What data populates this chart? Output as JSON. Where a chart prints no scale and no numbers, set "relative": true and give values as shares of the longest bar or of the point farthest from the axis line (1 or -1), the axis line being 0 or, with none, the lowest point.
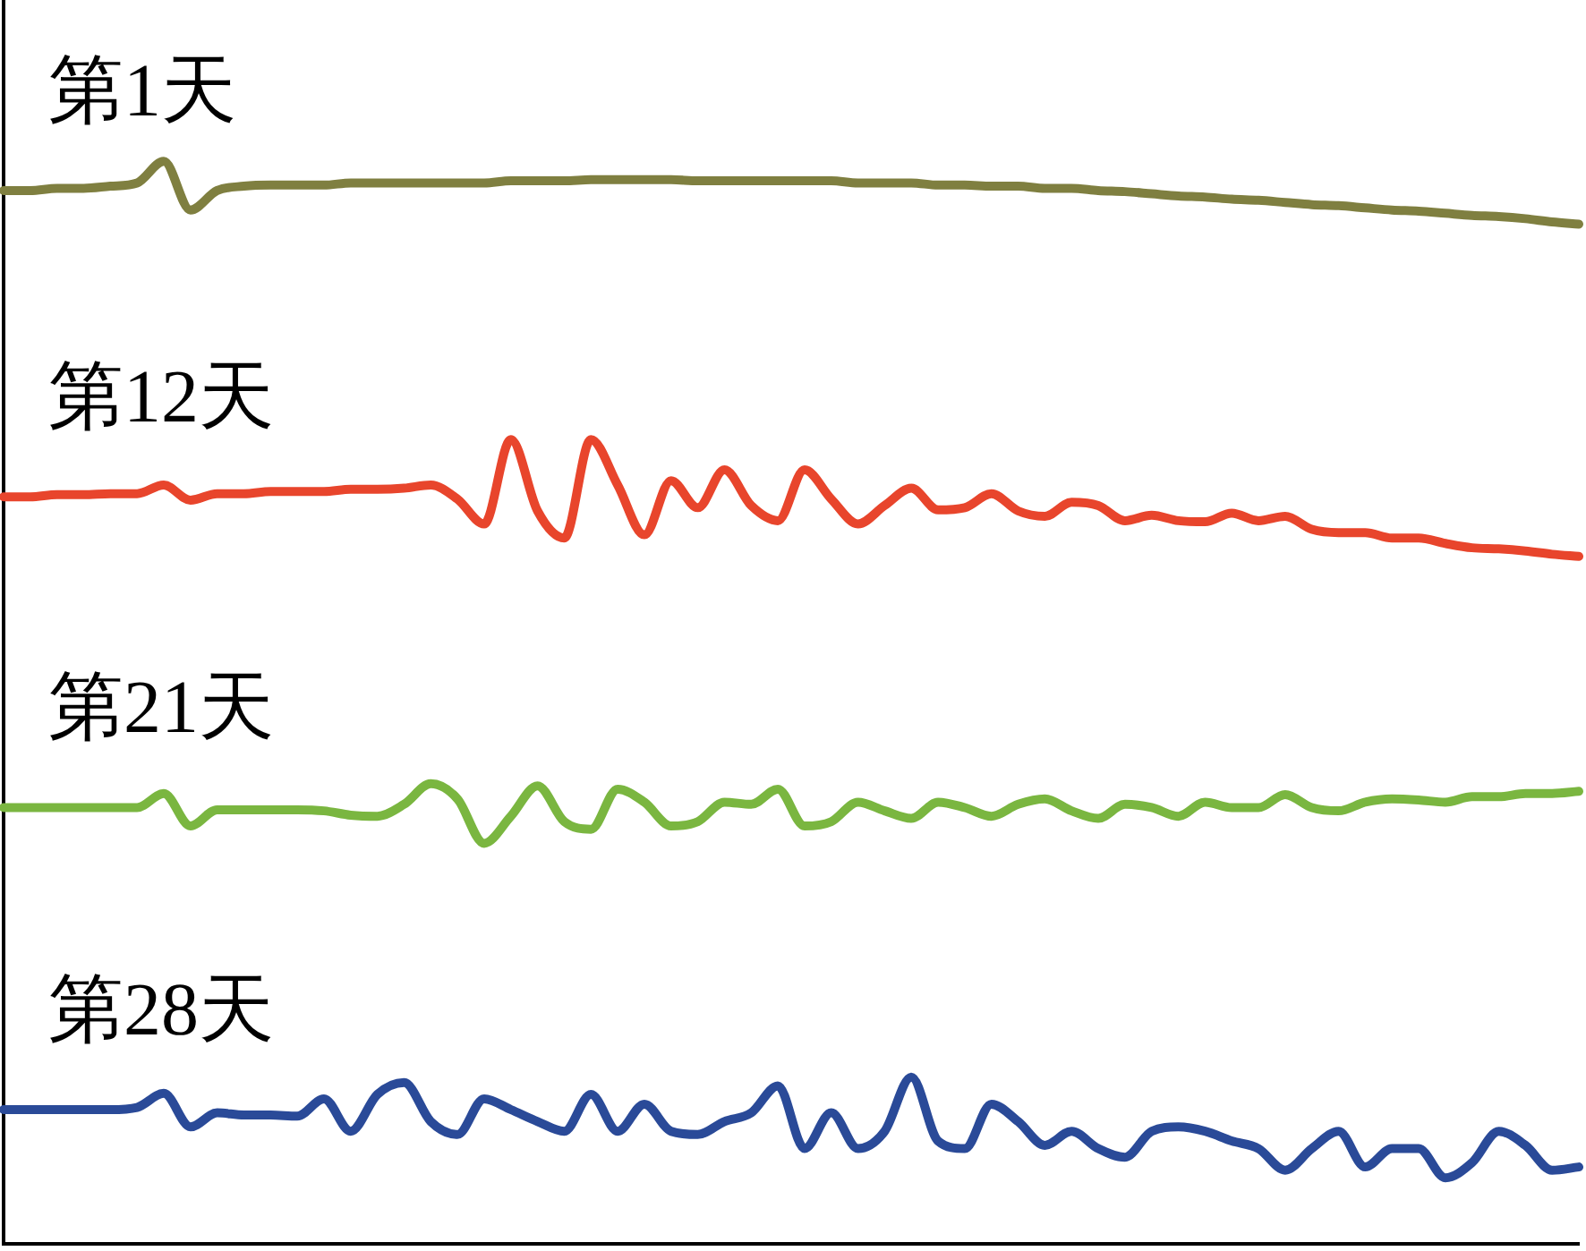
{
  "chart_data": {
    "type": "line",
    "relative": true,
    "legend": false,
    "grid": false,
    "marker": "none",
    "line_style": "solid",
    "categories": [
      null,
      null,
      null,
      null,
      null,
      null,
      null,
      null,
      null,
      null,
      null,
      null,
      null,
      null,
      null,
      null,
      null,
      null,
      null,
      null,
      null,
      null,
      null,
      null,
      null,
      null,
      null,
      null,
      null,
      null,
      null,
      null,
      null,
      null,
      null,
      null,
      null,
      null,
      null,
      null,
      null,
      null,
      null,
      null,
      null,
      null,
      null,
      null,
      null,
      null,
      null,
      null,
      null,
      null,
      null,
      null,
      null,
      null,
      null,
      null
    ],
    "series": [
      {
        "name": "第1天",
        "color": "#7f7f40",
        "values": [
          0.973,
          0.973,
          0.975,
          0.975,
          0.977,
          0.98,
          1.0,
          0.955,
          0.973,
          0.977,
          0.978,
          0.978,
          0.978,
          0.98,
          0.98,
          0.98,
          0.98,
          0.98,
          0.98,
          0.982,
          0.982,
          0.982,
          0.983,
          0.983,
          0.983,
          0.983,
          0.982,
          0.982,
          0.982,
          0.982,
          0.982,
          0.982,
          0.98,
          0.98,
          0.98,
          0.978,
          0.978,
          0.977,
          0.977,
          0.975,
          0.975,
          0.973,
          0.972,
          0.97,
          0.968,
          0.967,
          0.965,
          0.964,
          0.962,
          0.96,
          0.959,
          0.957,
          0.955,
          0.954,
          0.952,
          0.95,
          0.949,
          0.947,
          0.944,
          0.942
        ]
      },
      {
        "name": "第12天",
        "color": "#e8452c",
        "values": [
          0.69,
          0.69,
          0.692,
          0.692,
          0.693,
          0.693,
          0.701,
          0.687,
          0.693,
          0.693,
          0.695,
          0.695,
          0.695,
          0.697,
          0.697,
          0.698,
          0.701,
          0.688,
          0.665,
          0.743,
          0.677,
          0.652,
          0.743,
          0.701,
          0.655,
          0.705,
          0.68,
          0.715,
          0.682,
          0.668,
          0.715,
          0.688,
          0.665,
          0.682,
          0.698,
          0.678,
          0.68,
          0.693,
          0.677,
          0.672,
          0.685,
          0.682,
          0.668,
          0.673,
          0.668,
          0.667,
          0.675,
          0.668,
          0.672,
          0.66,
          0.657,
          0.657,
          0.652,
          0.652,
          0.647,
          0.643,
          0.642,
          0.64,
          0.637,
          0.635
        ]
      },
      {
        "name": "第21天",
        "color": "#7ab640",
        "values": [
          0.403,
          0.403,
          0.403,
          0.403,
          0.403,
          0.403,
          0.416,
          0.386,
          0.401,
          0.401,
          0.401,
          0.401,
          0.4,
          0.396,
          0.395,
          0.406,
          0.425,
          0.411,
          0.37,
          0.395,
          0.423,
          0.39,
          0.383,
          0.42,
          0.408,
          0.386,
          0.39,
          0.408,
          0.406,
          0.42,
          0.386,
          0.39,
          0.408,
          0.4,
          0.393,
          0.408,
          0.403,
          0.395,
          0.406,
          0.411,
          0.4,
          0.393,
          0.406,
          0.403,
          0.395,
          0.408,
          0.403,
          0.403,
          0.415,
          0.403,
          0.4,
          0.408,
          0.411,
          0.41,
          0.408,
          0.413,
          0.413,
          0.416,
          0.416,
          0.418
        ]
      },
      {
        "name": "第28天",
        "color": "#2a4a98",
        "values": [
          0.124,
          0.124,
          0.124,
          0.124,
          0.124,
          0.126,
          0.139,
          0.108,
          0.121,
          0.119,
          0.119,
          0.118,
          0.134,
          0.104,
          0.138,
          0.149,
          0.113,
          0.101,
          0.134,
          0.124,
          0.113,
          0.104,
          0.138,
          0.104,
          0.129,
          0.104,
          0.101,
          0.113,
          0.121,
          0.146,
          0.088,
          0.121,
          0.088,
          0.104,
          0.154,
          0.095,
          0.088,
          0.129,
          0.113,
          0.091,
          0.104,
          0.088,
          0.08,
          0.104,
          0.108,
          0.104,
          0.095,
          0.088,
          0.068,
          0.088,
          0.104,
          0.071,
          0.088,
          0.088,
          0.061,
          0.075,
          0.104,
          0.091,
          0.068,
          0.071
        ]
      }
    ]
  }
}
